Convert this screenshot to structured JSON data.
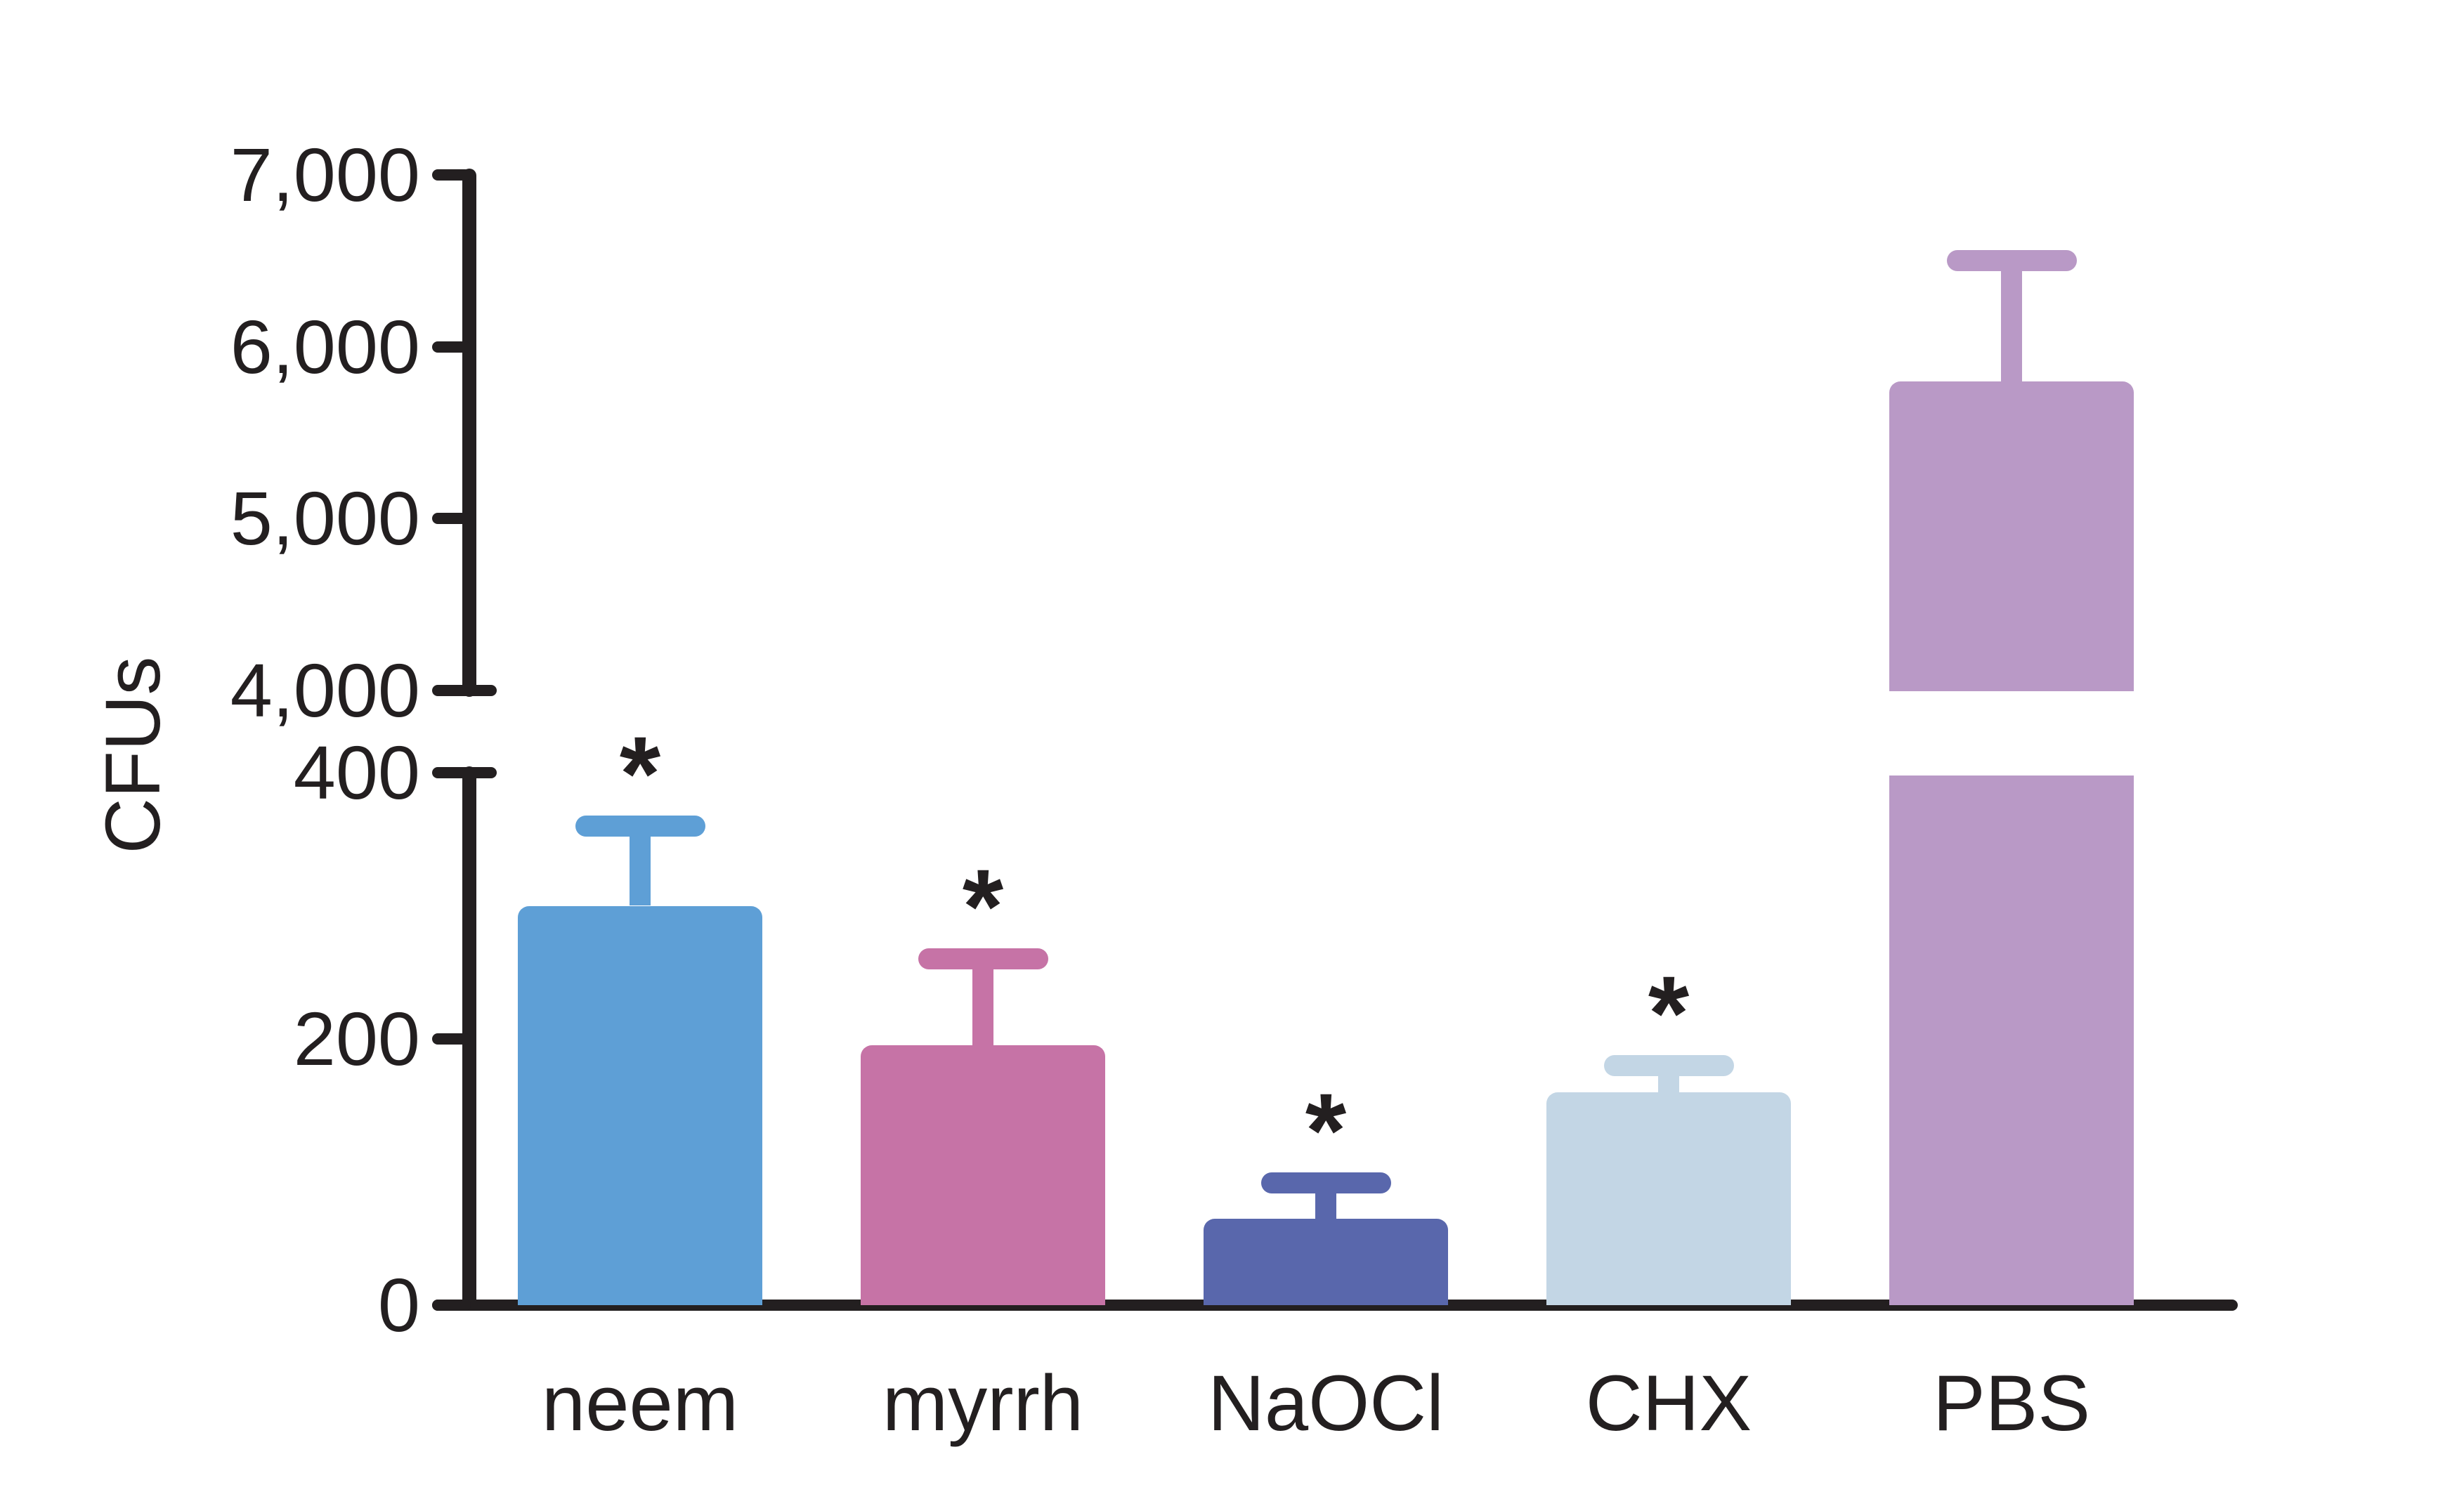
{
  "figure": {
    "background": "#ffffff",
    "axis_color": "#231f20",
    "text_color": "#231f20"
  },
  "chart_data": {
    "type": "bar",
    "title": "",
    "xlabel": "",
    "ylabel": "CFUs",
    "grid": false,
    "legend": null,
    "categories": [
      "neem",
      "myrrh",
      "NaOCl",
      "CHX",
      "PBS"
    ],
    "values": [
      300,
      195,
      65,
      160,
      5800
    ],
    "error_plus": [
      60,
      65,
      27,
      20,
      700
    ],
    "significance": [
      "*",
      "*",
      "*",
      "*",
      ""
    ],
    "bar_colors": [
      "#5e9fd6",
      "#c673a6",
      "#5967ac",
      "#c3d6e5",
      "#b999c6"
    ],
    "axis_break": true,
    "lower_axis_range": [
      0,
      400
    ],
    "upper_axis_range": [
      4000,
      7000
    ],
    "yticks_lower": [
      0,
      200,
      400
    ],
    "ytick_labels_lower": [
      "0",
      "200",
      "400"
    ],
    "yticks_upper": [
      4000,
      5000,
      6000,
      7000
    ],
    "ytick_labels_upper": [
      "4,000",
      "5,000",
      "6,000",
      "7,000"
    ]
  }
}
